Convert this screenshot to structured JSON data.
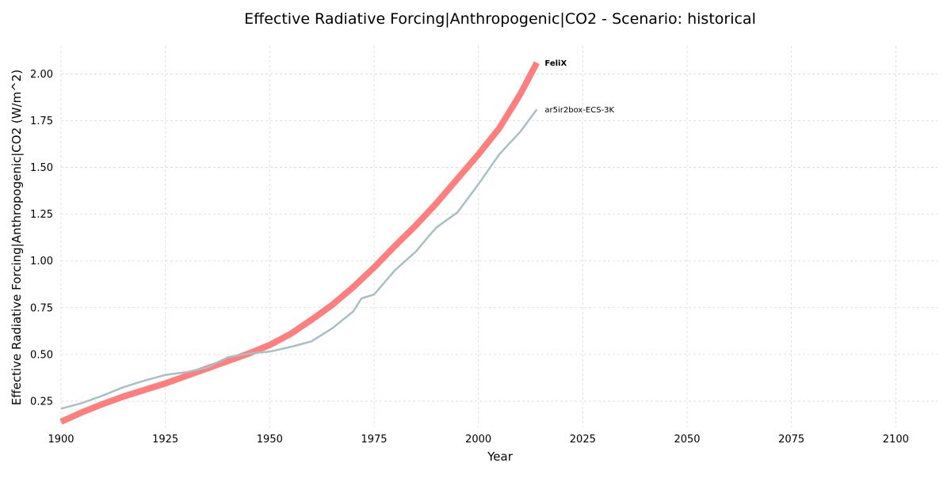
{
  "chart_data": {
    "type": "line",
    "title": "Effective Radiative Forcing|Anthropogenic|CO2 - Scenario: historical",
    "xlabel": "Year",
    "ylabel": "Effective Radiative Forcing|Anthropogenic|CO2 (W/m^2)",
    "xlim": [
      1900,
      2110
    ],
    "ylim": [
      0.11,
      2.15
    ],
    "xticks": [
      1900,
      1925,
      1950,
      1975,
      2000,
      2025,
      2050,
      2075,
      2100
    ],
    "yticks": [
      0.25,
      0.5,
      0.75,
      1.0,
      1.25,
      1.5,
      1.75,
      2.0
    ],
    "xtick_labels": [
      "1900",
      "1925",
      "1950",
      "1975",
      "2000",
      "2025",
      "2050",
      "2075",
      "2100"
    ],
    "ytick_labels": [
      "0.25",
      "0.50",
      "0.75",
      "1.00",
      "1.25",
      "1.50",
      "1.75",
      "2.00"
    ],
    "grid": true,
    "legend": "labels at line ends",
    "series": [
      {
        "name": "FeliX",
        "color": "#ff7f7f",
        "x": [
          1900,
          1905,
          1910,
          1915,
          1920,
          1925,
          1930,
          1935,
          1940,
          1945,
          1950,
          1955,
          1960,
          1965,
          1970,
          1975,
          1980,
          1985,
          1990,
          1995,
          2000,
          2005,
          2010,
          2014
        ],
        "y": [
          0.14,
          0.19,
          0.235,
          0.275,
          0.31,
          0.345,
          0.385,
          0.425,
          0.465,
          0.505,
          0.55,
          0.61,
          0.685,
          0.765,
          0.86,
          0.965,
          1.08,
          1.19,
          1.31,
          1.44,
          1.57,
          1.71,
          1.89,
          2.06
        ]
      },
      {
        "name": "ar5ir2box-ECS-3K",
        "color": "#a9bec6",
        "x": [
          1900,
          1905,
          1910,
          1915,
          1920,
          1925,
          1930,
          1935,
          1940,
          1945,
          1950,
          1955,
          1960,
          1965,
          1970,
          1972,
          1975,
          1980,
          1985,
          1988,
          1990,
          1995,
          2000,
          2005,
          2010,
          2014
        ],
        "y": [
          0.21,
          0.24,
          0.28,
          0.325,
          0.36,
          0.39,
          0.405,
          0.43,
          0.485,
          0.505,
          0.515,
          0.54,
          0.57,
          0.64,
          0.73,
          0.8,
          0.82,
          0.95,
          1.05,
          1.13,
          1.18,
          1.26,
          1.41,
          1.57,
          1.69,
          1.81
        ]
      }
    ]
  }
}
